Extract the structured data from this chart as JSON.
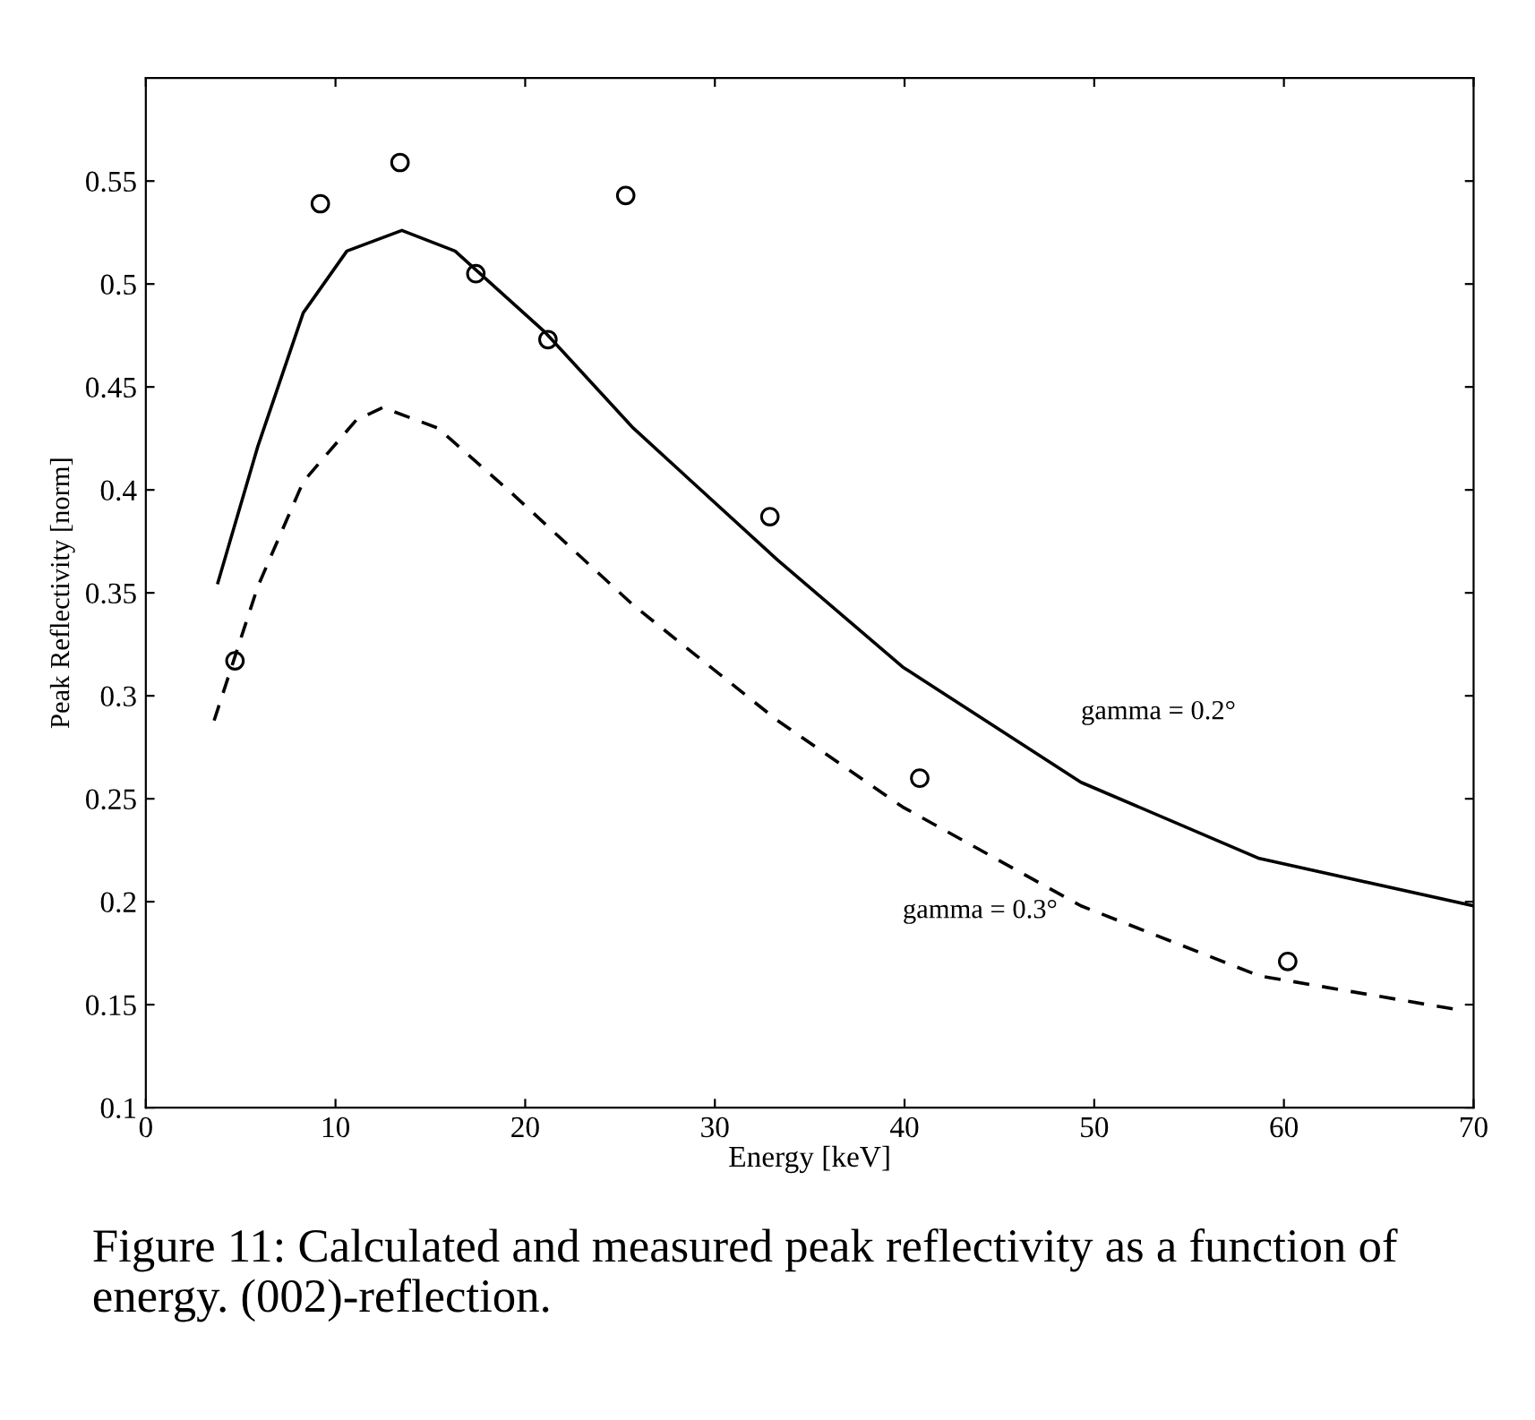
{
  "chart_data": {
    "type": "line",
    "xlabel": "Energy [keV]",
    "ylabel": "Peak Reflectivity [norm]",
    "xlim": [
      0,
      70
    ],
    "xticks": [
      0,
      10,
      20,
      30,
      40,
      50,
      60,
      70
    ],
    "ylim": [
      0.1,
      0.6
    ],
    "yticks": [
      0.1,
      0.15,
      0.2,
      0.25,
      0.3,
      0.35,
      0.4,
      0.45,
      0.5,
      0.55
    ],
    "grid": false,
    "legend": false,
    "series": [
      {
        "name": "gamma = 0.2°",
        "line_style": "solid",
        "marker": "none",
        "color": "#000000",
        "x": [
          3.8,
          5.9,
          8.3,
          10.6,
          13.5,
          16.3,
          21,
          25.7,
          33.3,
          39.9,
          49.3,
          58.7,
          70
        ],
        "values": [
          0.355,
          0.421,
          0.486,
          0.516,
          0.526,
          0.516,
          0.477,
          0.43,
          0.366,
          0.314,
          0.258,
          0.221,
          0.198
        ]
      },
      {
        "name": "gamma = 0.3°",
        "line_style": "dashed",
        "marker": "none",
        "color": "#000000",
        "x": [
          3.6,
          5.9,
          8.3,
          11.1,
          12.5,
          15.4,
          19.1,
          25.7,
          33.3,
          39.9,
          49.3,
          58.7,
          69.5
        ],
        "values": [
          0.288,
          0.353,
          0.404,
          0.434,
          0.44,
          0.43,
          0.4,
          0.344,
          0.288,
          0.246,
          0.198,
          0.164,
          0.147
        ]
      },
      {
        "type": "scatter",
        "marker": "circle",
        "color": "#000000",
        "x": [
          4.7,
          9.2,
          13.4,
          17.4,
          21.2,
          25.3,
          32.9,
          40.8,
          60.2
        ],
        "values": [
          0.317,
          0.539,
          0.559,
          0.505,
          0.473,
          0.543,
          0.387,
          0.26,
          0.171
        ]
      }
    ],
    "annotations": [
      "Figure 11: Calculated and measured peak reflectivity as a function of energy. (002)-reflection."
    ]
  }
}
